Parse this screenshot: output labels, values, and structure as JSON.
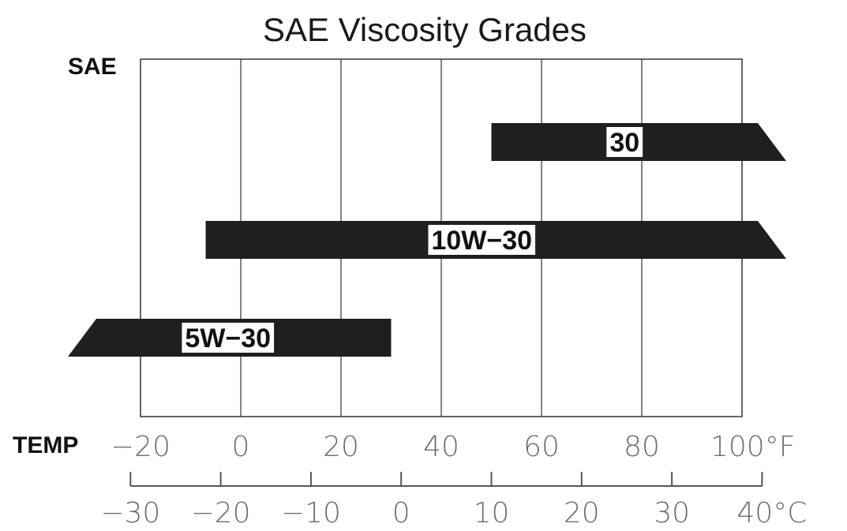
{
  "chart_data": {
    "type": "bar",
    "title": "SAE Viscosity Grades",
    "y_axis_label": "SAE",
    "x_axis_label": "TEMP",
    "fahrenheit_ticks": [
      "−20",
      "0",
      "20",
      "40",
      "60",
      "80",
      "100°F"
    ],
    "celsius_ticks": [
      "−30",
      "−20",
      "−10",
      "0",
      "10",
      "20",
      "30",
      "40°C"
    ],
    "xlim_f": [
      -20,
      100
    ],
    "grid": true,
    "series": [
      {
        "label": "30",
        "f_start": 50,
        "f_end": 100,
        "extends_above": true,
        "extends_below": false
      },
      {
        "label": "10W−30",
        "f_start": -7,
        "f_end": 100,
        "extends_above": true,
        "extends_below": false
      },
      {
        "label": "5W−30",
        "f_start": -20,
        "f_end": 30,
        "extends_above": false,
        "extends_below": true
      }
    ],
    "colors": {
      "bar": "#1f1f1f",
      "grid": "#333333",
      "label_bg": "#ffffff"
    }
  }
}
